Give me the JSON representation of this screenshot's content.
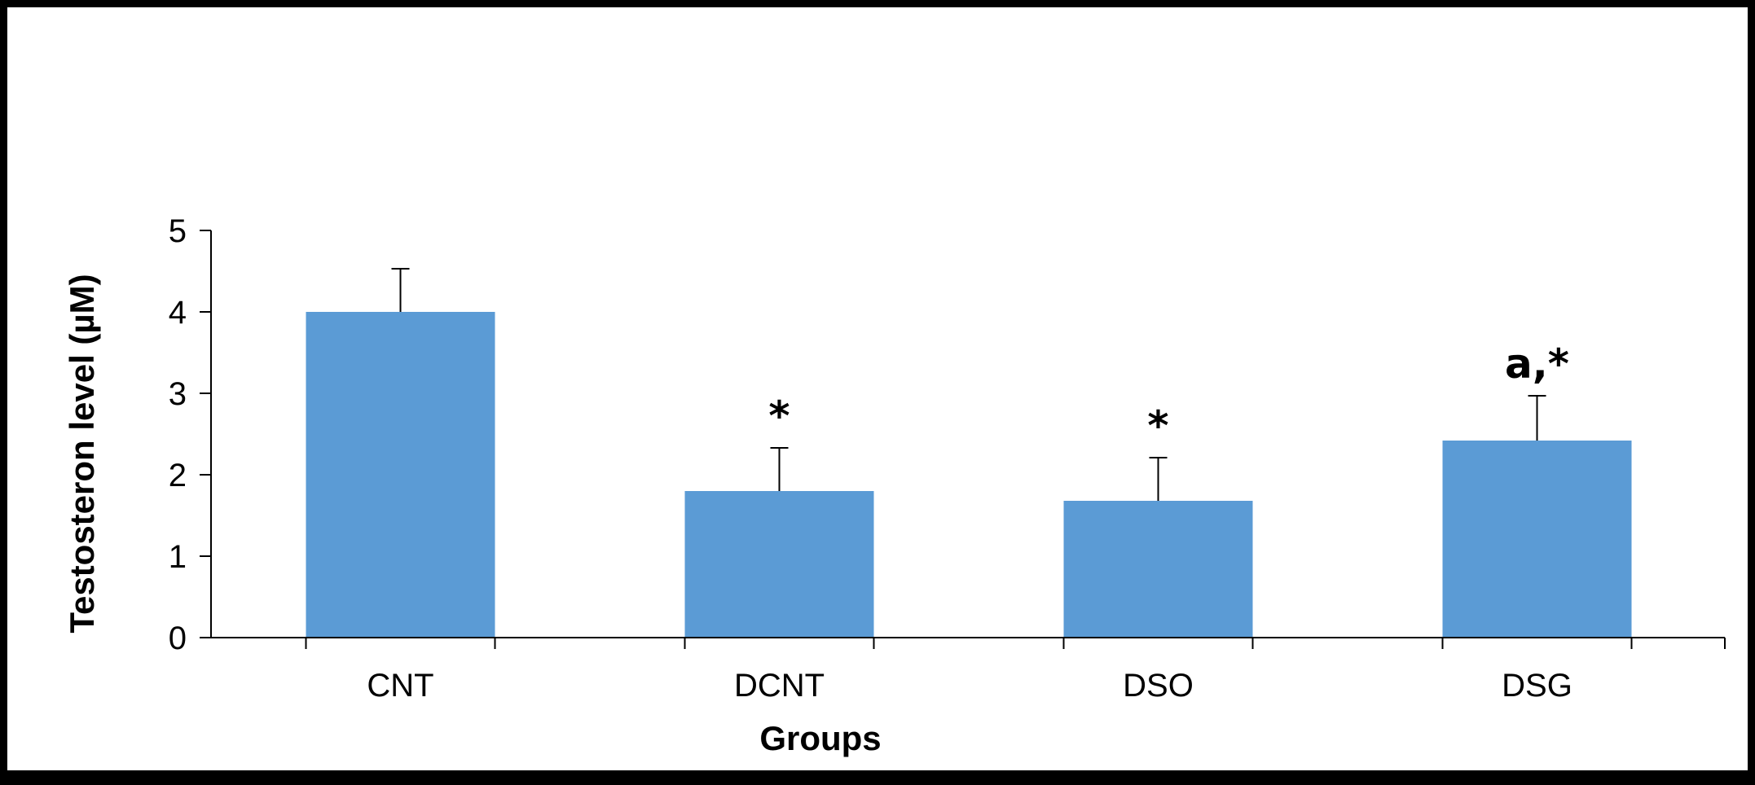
{
  "chart_data": {
    "type": "bar",
    "categories": [
      "CNT",
      "DCNT",
      "DSO",
      "DSG"
    ],
    "values": [
      4.0,
      1.8,
      1.68,
      2.42
    ],
    "error": [
      0.53,
      0.53,
      0.53,
      0.55
    ],
    "annotations": [
      "",
      "*",
      "*",
      "a,*"
    ],
    "xlabel": "Groups",
    "ylabel": "Testosteron level (µM)",
    "ylim": [
      0,
      5
    ],
    "yticks": [
      0,
      1,
      2,
      3,
      4,
      5
    ],
    "grid": false,
    "legend": "none",
    "bar_color": "#5B9BD5"
  }
}
